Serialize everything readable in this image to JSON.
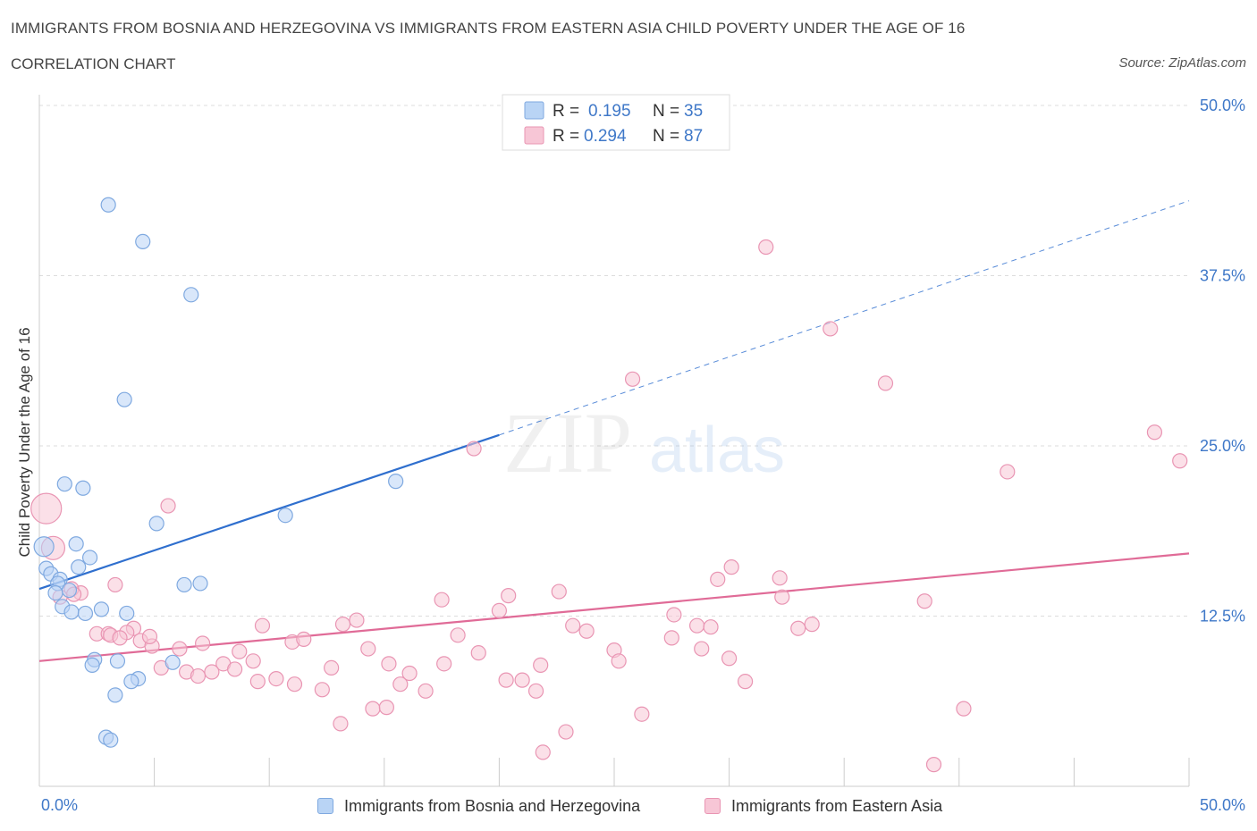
{
  "header": {
    "title": "IMMIGRANTS FROM BOSNIA AND HERZEGOVINA VS IMMIGRANTS FROM EASTERN ASIA CHILD POVERTY UNDER THE AGE OF 16",
    "subtitle": "CORRELATION CHART",
    "source": "Source: ZipAtlas.com"
  },
  "colors": {
    "blue_fill": "#b9d4f5",
    "blue_stroke": "#7fa9e0",
    "blue_line": "#2f6fce",
    "pink_fill": "#f7c6d6",
    "pink_stroke": "#e995b3",
    "pink_line": "#e06b97",
    "axis_label": "#3f78c8",
    "grid": "#dddddd"
  },
  "stats": {
    "blue": {
      "r_label": "R =",
      "r_value": "0.195",
      "n_label": "N =",
      "n_value": "35"
    },
    "pink": {
      "r_label": "R =",
      "r_value": "0.294",
      "n_label": "N =",
      "n_value": "87"
    }
  },
  "watermark": {
    "zip": "ZIP",
    "atlas": "atlas"
  },
  "chart_data": {
    "type": "scatter",
    "title": "IMMIGRANTS FROM BOSNIA AND HERZEGOVINA VS IMMIGRANTS FROM EASTERN ASIA CHILD POVERTY UNDER THE AGE OF 16",
    "xlabel": "",
    "ylabel": "Child Poverty Under the Age of 16",
    "xlim": [
      0,
      50
    ],
    "ylim": [
      0,
      50
    ],
    "x_tick_labels": [
      "0.0%",
      "50.0%"
    ],
    "y_ticks": [
      12.5,
      25.0,
      37.5,
      50.0
    ],
    "y_tick_labels": [
      "12.5%",
      "25.0%",
      "37.5%",
      "50.0%"
    ],
    "grid": true,
    "legend_position": "bottom",
    "series": [
      {
        "name": "Immigrants from Bosnia and Herzegovina",
        "color": "#b9d4f5",
        "trend": {
          "x": [
            0,
            20
          ],
          "y": [
            14.5,
            25.8
          ],
          "extended_x": [
            20,
            50
          ],
          "extended_y": [
            25.8,
            43.0
          ]
        },
        "points": [
          {
            "x": 3.0,
            "y": 42.7
          },
          {
            "x": 4.5,
            "y": 40.0
          },
          {
            "x": 6.6,
            "y": 36.1
          },
          {
            "x": 3.7,
            "y": 28.4
          },
          {
            "x": 1.1,
            "y": 22.2
          },
          {
            "x": 1.9,
            "y": 21.9
          },
          {
            "x": 15.5,
            "y": 22.4
          },
          {
            "x": 10.7,
            "y": 19.9
          },
          {
            "x": 5.1,
            "y": 19.3
          },
          {
            "x": 0.2,
            "y": 17.6
          },
          {
            "x": 1.6,
            "y": 17.8
          },
          {
            "x": 2.2,
            "y": 16.8
          },
          {
            "x": 0.3,
            "y": 16.0
          },
          {
            "x": 0.5,
            "y": 15.6
          },
          {
            "x": 0.9,
            "y": 15.2
          },
          {
            "x": 1.7,
            "y": 16.1
          },
          {
            "x": 0.8,
            "y": 14.9
          },
          {
            "x": 0.7,
            "y": 14.2
          },
          {
            "x": 1.3,
            "y": 14.4
          },
          {
            "x": 6.3,
            "y": 14.8
          },
          {
            "x": 7.0,
            "y": 14.9
          },
          {
            "x": 1.0,
            "y": 13.2
          },
          {
            "x": 1.4,
            "y": 12.8
          },
          {
            "x": 2.0,
            "y": 12.7
          },
          {
            "x": 2.7,
            "y": 13.0
          },
          {
            "x": 3.8,
            "y": 12.7
          },
          {
            "x": 2.4,
            "y": 9.3
          },
          {
            "x": 2.3,
            "y": 8.9
          },
          {
            "x": 3.4,
            "y": 9.2
          },
          {
            "x": 5.8,
            "y": 9.1
          },
          {
            "x": 4.3,
            "y": 7.9
          },
          {
            "x": 3.3,
            "y": 6.7
          },
          {
            "x": 4.0,
            "y": 7.7
          },
          {
            "x": 2.9,
            "y": 3.6
          },
          {
            "x": 3.1,
            "y": 3.4
          }
        ]
      },
      {
        "name": "Immigrants from Eastern Asia",
        "color": "#f7c6d6",
        "trend": {
          "x": [
            0,
            50
          ],
          "y": [
            9.2,
            17.1
          ]
        },
        "points": [
          {
            "x": 31.6,
            "y": 39.6
          },
          {
            "x": 34.4,
            "y": 33.6
          },
          {
            "x": 36.8,
            "y": 29.6
          },
          {
            "x": 25.8,
            "y": 29.9
          },
          {
            "x": 48.5,
            "y": 26.0
          },
          {
            "x": 49.6,
            "y": 23.9
          },
          {
            "x": 42.1,
            "y": 23.1
          },
          {
            "x": 18.9,
            "y": 24.8
          },
          {
            "x": 0.3,
            "y": 20.4
          },
          {
            "x": 5.6,
            "y": 20.6
          },
          {
            "x": 0.6,
            "y": 17.5
          },
          {
            "x": 30.1,
            "y": 16.1
          },
          {
            "x": 29.5,
            "y": 15.2
          },
          {
            "x": 32.2,
            "y": 15.3
          },
          {
            "x": 1.8,
            "y": 14.2
          },
          {
            "x": 3.3,
            "y": 14.8
          },
          {
            "x": 1.4,
            "y": 14.5
          },
          {
            "x": 22.6,
            "y": 14.3
          },
          {
            "x": 20.4,
            "y": 14.0
          },
          {
            "x": 32.3,
            "y": 13.9
          },
          {
            "x": 17.5,
            "y": 13.7
          },
          {
            "x": 38.5,
            "y": 13.6
          },
          {
            "x": 20.0,
            "y": 12.9
          },
          {
            "x": 27.6,
            "y": 12.6
          },
          {
            "x": 13.8,
            "y": 12.2
          },
          {
            "x": 13.2,
            "y": 11.9
          },
          {
            "x": 9.7,
            "y": 11.8
          },
          {
            "x": 23.2,
            "y": 11.8
          },
          {
            "x": 23.8,
            "y": 11.4
          },
          {
            "x": 28.6,
            "y": 11.8
          },
          {
            "x": 29.2,
            "y": 11.7
          },
          {
            "x": 33.6,
            "y": 11.9
          },
          {
            "x": 33.0,
            "y": 11.6
          },
          {
            "x": 4.1,
            "y": 11.6
          },
          {
            "x": 2.5,
            "y": 11.2
          },
          {
            "x": 3.0,
            "y": 11.2
          },
          {
            "x": 3.8,
            "y": 11.3
          },
          {
            "x": 4.4,
            "y": 10.7
          },
          {
            "x": 18.2,
            "y": 11.1
          },
          {
            "x": 11.0,
            "y": 10.6
          },
          {
            "x": 11.5,
            "y": 10.8
          },
          {
            "x": 27.5,
            "y": 10.9
          },
          {
            "x": 7.1,
            "y": 10.5
          },
          {
            "x": 4.9,
            "y": 10.3
          },
          {
            "x": 6.1,
            "y": 10.1
          },
          {
            "x": 8.7,
            "y": 9.9
          },
          {
            "x": 14.3,
            "y": 10.1
          },
          {
            "x": 19.1,
            "y": 9.8
          },
          {
            "x": 25.0,
            "y": 10.0
          },
          {
            "x": 28.8,
            "y": 10.1
          },
          {
            "x": 30.0,
            "y": 9.4
          },
          {
            "x": 9.3,
            "y": 9.2
          },
          {
            "x": 8.0,
            "y": 9.0
          },
          {
            "x": 15.2,
            "y": 9.0
          },
          {
            "x": 17.6,
            "y": 9.0
          },
          {
            "x": 21.8,
            "y": 8.9
          },
          {
            "x": 25.2,
            "y": 9.2
          },
          {
            "x": 5.3,
            "y": 8.7
          },
          {
            "x": 6.4,
            "y": 8.4
          },
          {
            "x": 7.5,
            "y": 8.4
          },
          {
            "x": 8.5,
            "y": 8.6
          },
          {
            "x": 12.7,
            "y": 8.7
          },
          {
            "x": 16.1,
            "y": 8.3
          },
          {
            "x": 6.9,
            "y": 8.1
          },
          {
            "x": 10.3,
            "y": 7.9
          },
          {
            "x": 11.1,
            "y": 7.5
          },
          {
            "x": 9.5,
            "y": 7.7
          },
          {
            "x": 15.7,
            "y": 7.5
          },
          {
            "x": 20.3,
            "y": 7.8
          },
          {
            "x": 21.0,
            "y": 7.8
          },
          {
            "x": 30.7,
            "y": 7.7
          },
          {
            "x": 12.3,
            "y": 7.1
          },
          {
            "x": 16.8,
            "y": 7.0
          },
          {
            "x": 21.6,
            "y": 7.0
          },
          {
            "x": 14.5,
            "y": 5.7
          },
          {
            "x": 15.1,
            "y": 5.8
          },
          {
            "x": 26.2,
            "y": 5.3
          },
          {
            "x": 13.1,
            "y": 4.6
          },
          {
            "x": 40.2,
            "y": 5.7
          },
          {
            "x": 22.9,
            "y": 4.0
          },
          {
            "x": 21.9,
            "y": 2.5
          },
          {
            "x": 38.9,
            "y": 1.6
          },
          {
            "x": 1.5,
            "y": 14.1
          },
          {
            "x": 0.9,
            "y": 13.9
          },
          {
            "x": 3.1,
            "y": 11.1
          },
          {
            "x": 3.5,
            "y": 10.9
          },
          {
            "x": 4.8,
            "y": 11.0
          }
        ]
      }
    ]
  }
}
